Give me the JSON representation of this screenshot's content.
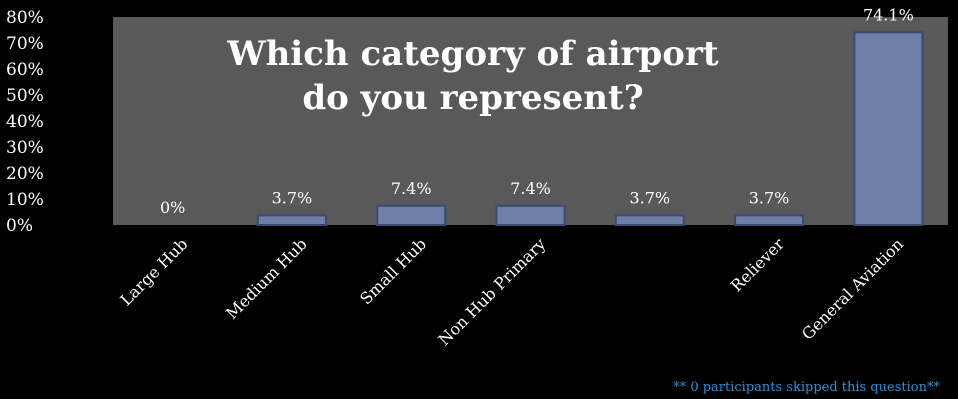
{
  "chart_data": {
    "type": "bar",
    "title_lines": [
      "Which category of airport",
      "do you represent?"
    ],
    "categories": [
      "Large Hub",
      "Medium Hub",
      "Small Hub",
      "Non Hub Primary",
      "",
      "Reliever",
      "General Aviation"
    ],
    "values": [
      0,
      3.7,
      7.4,
      7.4,
      3.7,
      3.7,
      74.1
    ],
    "data_labels": [
      "0%",
      "3.7%",
      "7.4%",
      "7.4%",
      "3.7%",
      "3.7%",
      "74.1%"
    ],
    "y_tick_labels": [
      "0%",
      "10%",
      "20%",
      "30%",
      "40%",
      "50%",
      "60%",
      "70%",
      "80%"
    ],
    "ylim": [
      0,
      80
    ],
    "grid": false,
    "legend": "none"
  },
  "footnote": "** 0 participants skipped this question**",
  "colors": {
    "background": "#000000",
    "plot_area": "#595959",
    "bar_fill": "#6e7fa8",
    "bar_edge": "#3b4a70",
    "footnote": "#2f8fd6"
  }
}
